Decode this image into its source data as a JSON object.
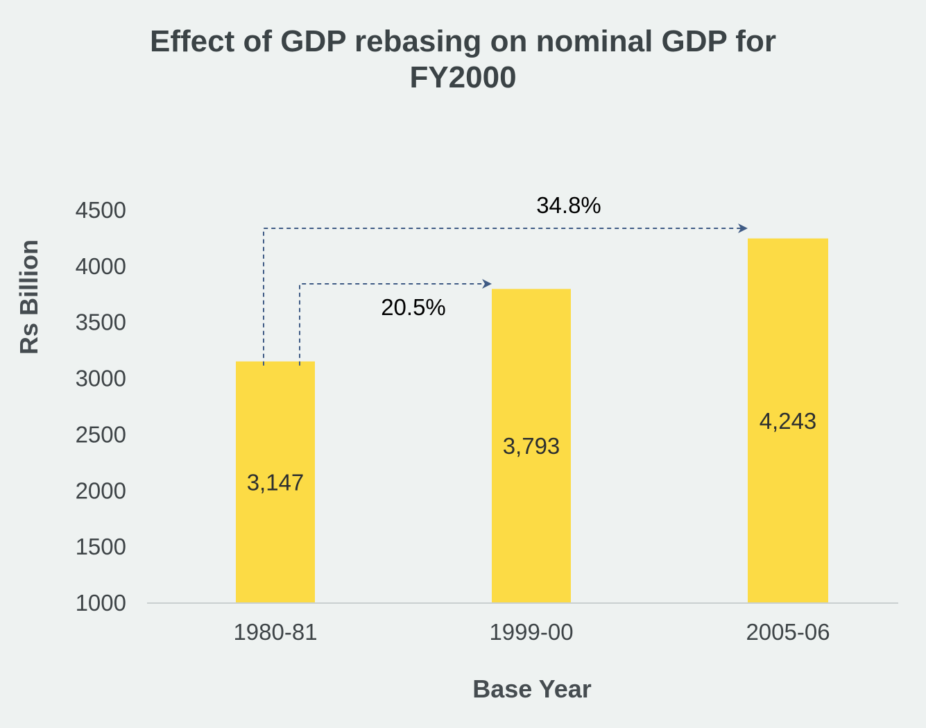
{
  "chart_data": {
    "type": "bar",
    "title_lines": [
      "Effect of GDP rebasing on nominal GDP for",
      "FY2000"
    ],
    "xlabel": "Base Year",
    "ylabel": "Rs Billion",
    "categories": [
      "1980-81",
      "1999-00",
      "2005-06"
    ],
    "values": [
      3147,
      3793,
      4243
    ],
    "data_labels": [
      "3,147",
      "3,793",
      "4,243"
    ],
    "ylim": [
      1000,
      4500
    ],
    "yticks": [
      "1000",
      "1500",
      "2000",
      "2500",
      "3000",
      "3500",
      "4000",
      "4500"
    ],
    "grid": false,
    "legend": "none",
    "bar_color": "#fcdb45",
    "annotations": [
      {
        "text": "20.5%",
        "from": "1980-81",
        "to": "1999-00"
      },
      {
        "text": "34.8%",
        "from": "1980-81",
        "to": "2005-06"
      }
    ],
    "arrow_color": "#3f5b85"
  }
}
